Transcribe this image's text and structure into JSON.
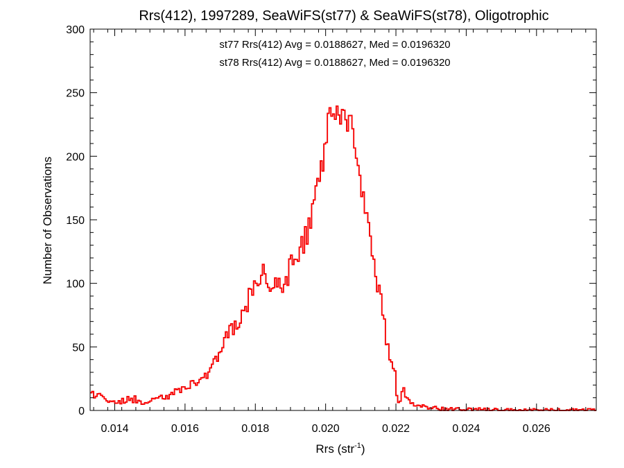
{
  "chart_data": {
    "type": "histogram",
    "title": "Rrs(412), 1997289, SeaWiFS(st77) & SeaWiFS(st78), Oligotrophic",
    "xlabel": "Rrs (str",
    "xlabel_sup": "-1",
    "xlabel_close": ")",
    "ylabel": "Number of Observations",
    "xlim": [
      0.0133,
      0.0277
    ],
    "ylim": [
      0,
      300
    ],
    "x_ticks": [
      0.014,
      0.016,
      0.018,
      0.02,
      0.022,
      0.024,
      0.026
    ],
    "x_tick_labels": [
      "0.014",
      "0.016",
      "0.018",
      "0.020",
      "0.022",
      "0.024",
      "0.026"
    ],
    "y_ticks": [
      0,
      50,
      100,
      150,
      200,
      250,
      300
    ],
    "y_tick_labels": [
      "0",
      "50",
      "100",
      "150",
      "200",
      "250",
      "300"
    ],
    "grid": false,
    "series": [
      {
        "name": "st77",
        "color": "#000000",
        "annotation": "st77 Rrs(412) Avg = 0.0188627, Med = 0.0196320",
        "points": [
          [
            0.0133,
            13
          ],
          [
            0.0137,
            10
          ],
          [
            0.0141,
            8
          ],
          [
            0.0145,
            9
          ],
          [
            0.0149,
            7
          ],
          [
            0.0153,
            9
          ],
          [
            0.0157,
            14
          ],
          [
            0.0161,
            20
          ],
          [
            0.0164,
            22
          ],
          [
            0.0167,
            33
          ],
          [
            0.017,
            46
          ],
          [
            0.0173,
            58
          ],
          [
            0.0176,
            74
          ],
          [
            0.0179,
            95
          ],
          [
            0.0182,
            106
          ],
          [
            0.0185,
            103
          ],
          [
            0.0188,
            100
          ],
          [
            0.0191,
            118
          ],
          [
            0.0194,
            132
          ],
          [
            0.0197,
            165
          ],
          [
            0.01995,
            200
          ],
          [
            0.0201,
            235
          ],
          [
            0.0204,
            228
          ],
          [
            0.0207,
            226
          ],
          [
            0.0209,
            195
          ],
          [
            0.0211,
            162
          ],
          [
            0.0213,
            128
          ],
          [
            0.0215,
            98
          ],
          [
            0.0217,
            62
          ],
          [
            0.0219,
            30
          ],
          [
            0.0221,
            13
          ],
          [
            0.0225,
            5
          ],
          [
            0.023,
            2
          ],
          [
            0.0235,
            1
          ],
          [
            0.024,
            1
          ],
          [
            0.025,
            0
          ],
          [
            0.026,
            0
          ],
          [
            0.027,
            0
          ],
          [
            0.0277,
            0
          ]
        ]
      },
      {
        "name": "st78",
        "color": "#ff0000",
        "annotation": "st78 Rrs(412) Avg = 0.0188627, Med = 0.0196320",
        "points": [
          [
            0.0133,
            13
          ],
          [
            0.0137,
            10
          ],
          [
            0.0141,
            8
          ],
          [
            0.0145,
            9
          ],
          [
            0.0149,
            7
          ],
          [
            0.0153,
            9
          ],
          [
            0.0157,
            14
          ],
          [
            0.0161,
            20
          ],
          [
            0.0164,
            22
          ],
          [
            0.0167,
            33
          ],
          [
            0.017,
            46
          ],
          [
            0.0173,
            58
          ],
          [
            0.0176,
            74
          ],
          [
            0.0179,
            95
          ],
          [
            0.0182,
            106
          ],
          [
            0.0185,
            103
          ],
          [
            0.0188,
            100
          ],
          [
            0.0191,
            118
          ],
          [
            0.0194,
            132
          ],
          [
            0.0197,
            165
          ],
          [
            0.01995,
            200
          ],
          [
            0.0201,
            235
          ],
          [
            0.0204,
            228
          ],
          [
            0.0207,
            226
          ],
          [
            0.0209,
            195
          ],
          [
            0.0211,
            162
          ],
          [
            0.0213,
            128
          ],
          [
            0.0215,
            98
          ],
          [
            0.0217,
            62
          ],
          [
            0.0219,
            30
          ],
          [
            0.0221,
            13
          ],
          [
            0.0225,
            5
          ],
          [
            0.023,
            2
          ],
          [
            0.0235,
            1
          ],
          [
            0.024,
            1
          ],
          [
            0.025,
            0
          ],
          [
            0.026,
            0
          ],
          [
            0.027,
            0
          ],
          [
            0.0277,
            0
          ]
        ]
      }
    ]
  }
}
